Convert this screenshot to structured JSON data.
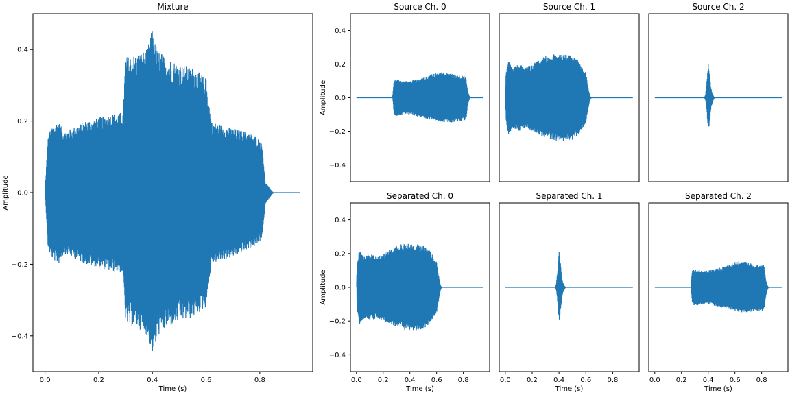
{
  "chart_data": [
    {
      "id": "mixture",
      "type": "line",
      "title": "Mixture",
      "xlabel": "Time (s)",
      "ylabel": "Amplitude",
      "xlim": [
        -0.045,
        0.997
      ],
      "ylim": [
        -0.5,
        0.5
      ],
      "xticks": [
        0.0,
        0.2,
        0.4,
        0.6,
        0.8
      ],
      "xtick_labels": [
        "0.0",
        "0.2",
        "0.4",
        "0.6",
        "0.8"
      ],
      "yticks": [
        -0.4,
        -0.2,
        0.0,
        0.2,
        0.4
      ],
      "ytick_labels": [
        "−0.4",
        "−0.2",
        "0.0",
        "0.2",
        "0.4"
      ],
      "color": "#1f77b4",
      "envelope": {
        "t": [
          0.0,
          0.01,
          0.02,
          0.035,
          0.05,
          0.07,
          0.1,
          0.15,
          0.2,
          0.25,
          0.29,
          0.3,
          0.35,
          0.38,
          0.4,
          0.41,
          0.42,
          0.45,
          0.5,
          0.55,
          0.6,
          0.62,
          0.65,
          0.7,
          0.75,
          0.78,
          0.8,
          0.81,
          0.82,
          0.83,
          0.84,
          0.85,
          0.95
        ],
        "upper": [
          0.0,
          0.15,
          0.18,
          0.19,
          0.2,
          0.17,
          0.18,
          0.2,
          0.21,
          0.22,
          0.225,
          0.38,
          0.39,
          0.4,
          0.46,
          0.42,
          0.4,
          0.38,
          0.36,
          0.35,
          0.32,
          0.2,
          0.19,
          0.18,
          0.17,
          0.16,
          0.15,
          0.13,
          0.03,
          0.02,
          0.01,
          0.0,
          0.0
        ],
        "lower": [
          0.0,
          -0.15,
          -0.18,
          -0.19,
          -0.2,
          -0.17,
          -0.18,
          -0.2,
          -0.21,
          -0.22,
          -0.225,
          -0.37,
          -0.38,
          -0.4,
          -0.45,
          -0.43,
          -0.4,
          -0.38,
          -0.36,
          -0.35,
          -0.32,
          -0.2,
          -0.19,
          -0.18,
          -0.16,
          -0.15,
          -0.14,
          -0.12,
          -0.03,
          -0.02,
          -0.01,
          0.0,
          0.0
        ]
      }
    },
    {
      "id": "source-0",
      "type": "line",
      "title": "Source Ch. 0",
      "xlabel": "",
      "ylabel": "Amplitude",
      "xlim": [
        -0.045,
        0.997
      ],
      "ylim": [
        -0.5,
        0.5
      ],
      "xticks": [],
      "yticks": [
        -0.4,
        -0.2,
        0.0,
        0.2,
        0.4
      ],
      "ytick_labels": [
        "−0.4",
        "−0.2",
        "0.0",
        "0.2",
        "0.4"
      ],
      "color": "#1f77b4",
      "envelope": {
        "t": [
          0.0,
          0.27,
          0.28,
          0.3,
          0.35,
          0.4,
          0.5,
          0.6,
          0.65,
          0.7,
          0.75,
          0.8,
          0.82,
          0.83,
          0.84,
          0.85,
          0.95
        ],
        "upper": [
          0.0,
          0.0,
          0.1,
          0.11,
          0.1,
          0.1,
          0.12,
          0.15,
          0.155,
          0.15,
          0.13,
          0.135,
          0.13,
          0.05,
          0.02,
          0.0,
          0.0
        ],
        "lower": [
          0.0,
          0.0,
          -0.1,
          -0.11,
          -0.1,
          -0.1,
          -0.12,
          -0.14,
          -0.15,
          -0.15,
          -0.14,
          -0.14,
          -0.13,
          -0.05,
          -0.02,
          0.0,
          0.0
        ]
      }
    },
    {
      "id": "source-1",
      "type": "line",
      "title": "Source Ch. 1",
      "xlabel": "",
      "ylabel": "",
      "xlim": [
        -0.045,
        0.997
      ],
      "ylim": [
        -0.5,
        0.5
      ],
      "xticks": [],
      "yticks": [],
      "color": "#1f77b4",
      "envelope": {
        "t": [
          0.0,
          0.005,
          0.02,
          0.04,
          0.06,
          0.1,
          0.15,
          0.2,
          0.3,
          0.4,
          0.5,
          0.55,
          0.6,
          0.62,
          0.63,
          0.64,
          0.95
        ],
        "upper": [
          0.0,
          0.15,
          0.22,
          0.2,
          0.18,
          0.2,
          0.18,
          0.2,
          0.25,
          0.265,
          0.25,
          0.22,
          0.15,
          0.05,
          0.01,
          0.0,
          0.0
        ],
        "lower": [
          0.0,
          -0.15,
          -0.22,
          -0.2,
          -0.18,
          -0.2,
          -0.18,
          -0.2,
          -0.24,
          -0.26,
          -0.25,
          -0.21,
          -0.15,
          -0.05,
          -0.01,
          0.0,
          0.0
        ]
      }
    },
    {
      "id": "source-2",
      "type": "line",
      "title": "Source Ch. 2",
      "xlabel": "",
      "ylabel": "",
      "xlim": [
        -0.045,
        0.997
      ],
      "ylim": [
        -0.5,
        0.5
      ],
      "xticks": [],
      "yticks": [],
      "color": "#1f77b4",
      "envelope": {
        "t": [
          0.0,
          0.37,
          0.38,
          0.39,
          0.4,
          0.41,
          0.42,
          0.43,
          0.44,
          0.45,
          0.95
        ],
        "upper": [
          0.0,
          0.0,
          0.02,
          0.1,
          0.22,
          0.16,
          0.06,
          0.03,
          0.01,
          0.0,
          0.0
        ],
        "lower": [
          0.0,
          0.0,
          -0.02,
          -0.1,
          -0.21,
          -0.15,
          -0.06,
          -0.03,
          -0.01,
          0.0,
          0.0
        ]
      }
    },
    {
      "id": "separated-0",
      "type": "line",
      "title": "Separated Ch. 0",
      "xlabel": "Time (s)",
      "ylabel": "Amplitude",
      "xlim": [
        -0.045,
        0.997
      ],
      "ylim": [
        -0.5,
        0.5
      ],
      "xticks": [
        0.0,
        0.2,
        0.4,
        0.6,
        0.8
      ],
      "xtick_labels": [
        "0.0",
        "0.2",
        "0.4",
        "0.6",
        "0.8"
      ],
      "yticks": [
        -0.4,
        -0.2,
        0.0,
        0.2,
        0.4
      ],
      "ytick_labels": [
        "−0.4",
        "−0.2",
        "0.0",
        "0.2",
        "0.4"
      ],
      "color": "#1f77b4",
      "envelope": {
        "t": [
          0.0,
          0.005,
          0.02,
          0.04,
          0.06,
          0.1,
          0.15,
          0.2,
          0.3,
          0.4,
          0.5,
          0.55,
          0.6,
          0.62,
          0.63,
          0.64,
          0.95
        ],
        "upper": [
          0.0,
          0.15,
          0.22,
          0.2,
          0.18,
          0.2,
          0.18,
          0.2,
          0.25,
          0.265,
          0.25,
          0.22,
          0.15,
          0.05,
          0.01,
          0.0,
          0.0
        ],
        "lower": [
          0.0,
          -0.15,
          -0.22,
          -0.2,
          -0.18,
          -0.2,
          -0.18,
          -0.2,
          -0.24,
          -0.26,
          -0.25,
          -0.21,
          -0.15,
          -0.05,
          -0.01,
          0.0,
          0.0
        ]
      }
    },
    {
      "id": "separated-1",
      "type": "line",
      "title": "Separated Ch. 1",
      "xlabel": "Time (s)",
      "ylabel": "",
      "xlim": [
        -0.045,
        0.997
      ],
      "ylim": [
        -0.5,
        0.5
      ],
      "xticks": [
        0.0,
        0.2,
        0.4,
        0.6,
        0.8
      ],
      "xtick_labels": [
        "0.0",
        "0.2",
        "0.4",
        "0.6",
        "0.8"
      ],
      "yticks": [],
      "color": "#1f77b4",
      "envelope": {
        "t": [
          0.0,
          0.37,
          0.38,
          0.39,
          0.4,
          0.41,
          0.42,
          0.43,
          0.44,
          0.45,
          0.95
        ],
        "upper": [
          0.0,
          0.0,
          0.02,
          0.1,
          0.22,
          0.16,
          0.06,
          0.03,
          0.01,
          0.0,
          0.0
        ],
        "lower": [
          0.0,
          0.0,
          -0.02,
          -0.1,
          -0.21,
          -0.15,
          -0.06,
          -0.03,
          -0.01,
          0.0,
          0.0
        ]
      }
    },
    {
      "id": "separated-2",
      "type": "line",
      "title": "Separated Ch. 2",
      "xlabel": "Time (s)",
      "ylabel": "",
      "xlim": [
        -0.045,
        0.997
      ],
      "ylim": [
        -0.5,
        0.5
      ],
      "xticks": [
        0.0,
        0.2,
        0.4,
        0.6,
        0.8
      ],
      "xtick_labels": [
        "0.0",
        "0.2",
        "0.4",
        "0.6",
        "0.8"
      ],
      "yticks": [],
      "color": "#1f77b4",
      "envelope": {
        "t": [
          0.0,
          0.27,
          0.28,
          0.3,
          0.35,
          0.4,
          0.5,
          0.6,
          0.65,
          0.7,
          0.75,
          0.8,
          0.82,
          0.83,
          0.84,
          0.85,
          0.95
        ],
        "upper": [
          0.0,
          0.0,
          0.1,
          0.11,
          0.1,
          0.1,
          0.12,
          0.15,
          0.155,
          0.15,
          0.13,
          0.135,
          0.13,
          0.05,
          0.02,
          0.0,
          0.0
        ],
        "lower": [
          0.0,
          0.0,
          -0.1,
          -0.11,
          -0.1,
          -0.1,
          -0.12,
          -0.14,
          -0.15,
          -0.15,
          -0.14,
          -0.14,
          -0.13,
          -0.05,
          -0.02,
          0.0,
          0.0
        ]
      }
    }
  ]
}
